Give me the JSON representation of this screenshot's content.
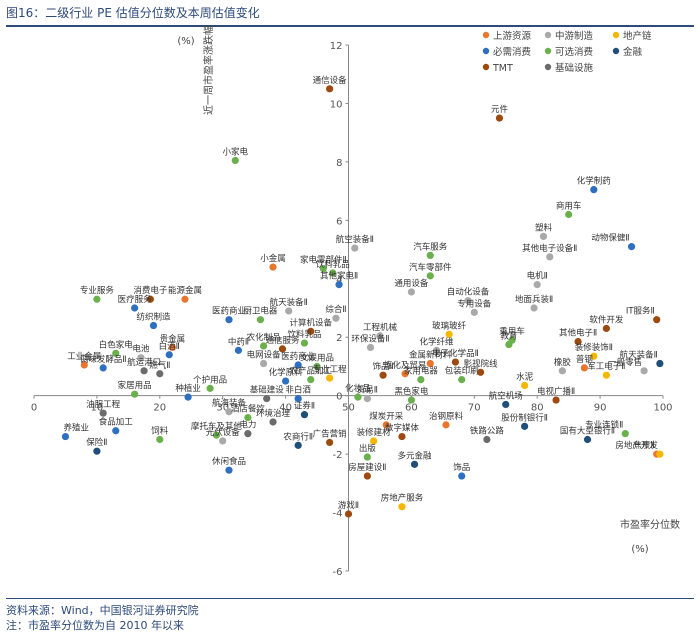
{
  "page": {
    "title": "图16：二级行业 PE 估值分位数及本周估值变化",
    "source": "资料来源：Wind，中国银河证券研究院",
    "note": "注：市盈率分位数为自 2010 年以来"
  },
  "chart_data": {
    "type": "scatter",
    "xlabel": "市盈率分位数",
    "xunit": "(%)",
    "ylabel": "近一周市盈率涨跌幅",
    "yunit": "(%)",
    "xlim": [
      0,
      100
    ],
    "ylim": [
      -6,
      12
    ],
    "xticks": [
      "0",
      "10",
      "20",
      "30",
      "40",
      "50",
      "60",
      "70",
      "80",
      "90",
      "100"
    ],
    "yticks": [
      "-6",
      "-4",
      "-2",
      "0",
      "2",
      "4",
      "6",
      "8",
      "10",
      "12"
    ],
    "legend_position": "top-right",
    "grid": false,
    "categories": [
      {
        "key": "up",
        "name": "上游资源",
        "color": "#e8762f"
      },
      {
        "key": "mid",
        "name": "中游制造",
        "color": "#a9a9a9"
      },
      {
        "key": "chain",
        "name": "地产链",
        "color": "#f5b800"
      },
      {
        "key": "need",
        "name": "必需消费",
        "color": "#2f6fc0"
      },
      {
        "key": "opt",
        "name": "可选消费",
        "color": "#6ab04c"
      },
      {
        "key": "fin",
        "name": "金融",
        "color": "#1f4e79"
      },
      {
        "key": "tmt",
        "name": "TMT",
        "color": "#9c4a0f"
      },
      {
        "key": "infra",
        "name": "基础设施",
        "color": "#6b6b6b"
      }
    ],
    "points": [
      {
        "label": "通信设备",
        "x": 47,
        "y": 10.5,
        "cat": "tmt"
      },
      {
        "label": "元件",
        "x": 74,
        "y": 9.5,
        "cat": "tmt"
      },
      {
        "label": "小家电",
        "x": 32,
        "y": 8.05,
        "cat": "opt"
      },
      {
        "label": "化学制药",
        "x": 89,
        "y": 7.05,
        "cat": "need"
      },
      {
        "label": "商用车",
        "x": 85,
        "y": 6.2,
        "cat": "opt"
      },
      {
        "label": "塑料",
        "x": 81,
        "y": 5.45,
        "cat": "mid"
      },
      {
        "label": "动物保健Ⅱ",
        "x": 95,
        "y": 5.1,
        "cat": "need"
      },
      {
        "label": "航空装备Ⅱ",
        "x": 51,
        "y": 5.05,
        "cat": "mid"
      },
      {
        "label": "其他电子设备Ⅱ",
        "x": 82,
        "y": 4.75,
        "cat": "mid"
      },
      {
        "label": "汽车服务",
        "x": 63,
        "y": 4.8,
        "cat": "opt"
      },
      {
        "label": "小金属",
        "x": 38,
        "y": 4.4,
        "cat": "up"
      },
      {
        "label": "家电零部件Ⅱ",
        "x": 46,
        "y": 4.35,
        "cat": "opt"
      },
      {
        "label": "汽车零部件",
        "x": 63,
        "y": 4.1,
        "cat": "opt"
      },
      {
        "label": "饮料乳品",
        "x": 47.5,
        "y": 4.2,
        "cat": "opt"
      },
      {
        "label": "其他家电Ⅱ",
        "x": 48.5,
        "y": 3.8,
        "cat": "need"
      },
      {
        "label": "电机Ⅱ",
        "x": 80,
        "y": 3.8,
        "cat": "mid"
      },
      {
        "label": "通用设备",
        "x": 60,
        "y": 3.55,
        "cat": "mid"
      },
      {
        "label": "自动化设备",
        "x": 69,
        "y": 3.25,
        "cat": "mid"
      },
      {
        "label": "地面兵装Ⅱ",
        "x": 79.5,
        "y": 3.0,
        "cat": "mid"
      },
      {
        "label": "专用设备",
        "x": 70,
        "y": 2.85,
        "cat": "mid"
      },
      {
        "label": "专业服务",
        "x": 10,
        "y": 3.3,
        "cat": "opt"
      },
      {
        "label": "消费电子",
        "x": 18.5,
        "y": 3.3,
        "cat": "tmt"
      },
      {
        "label": "能源金属",
        "x": 24,
        "y": 3.3,
        "cat": "up"
      },
      {
        "label": "医疗服务",
        "x": 16,
        "y": 3.0,
        "cat": "need"
      },
      {
        "label": "IT服务Ⅱ",
        "x": 99,
        "y": 2.6,
        "cat": "tmt"
      },
      {
        "label": "软件开发",
        "x": 91,
        "y": 2.3,
        "cat": "tmt"
      },
      {
        "label": "航天装备Ⅱ",
        "x": 40.5,
        "y": 2.9,
        "cat": "mid"
      },
      {
        "label": "医药商业",
        "x": 31,
        "y": 2.6,
        "cat": "need"
      },
      {
        "label": "厨卫电器",
        "x": 36,
        "y": 2.6,
        "cat": "opt"
      },
      {
        "label": "综合Ⅱ",
        "x": 48,
        "y": 2.65,
        "cat": "mid"
      },
      {
        "label": "纺织制造",
        "x": 19,
        "y": 2.4,
        "cat": "need"
      },
      {
        "label": "计算机设备",
        "x": 44,
        "y": 2.2,
        "cat": "tmt"
      },
      {
        "label": "工程机械",
        "x": 55,
        "y": 2.05,
        "cat": "mid"
      },
      {
        "label": "玻璃玻纤",
        "x": 66,
        "y": 2.1,
        "cat": "chain"
      },
      {
        "label": "乘用车",
        "x": 76,
        "y": 1.9,
        "cat": "opt"
      },
      {
        "label": "其他电子Ⅱ",
        "x": 86.5,
        "y": 1.85,
        "cat": "tmt"
      },
      {
        "label": "贵金属",
        "x": 22,
        "y": 1.65,
        "cat": "up"
      },
      {
        "label": "中药Ⅱ",
        "x": 32.5,
        "y": 1.55,
        "cat": "need"
      },
      {
        "label": "农化制品",
        "x": 36.5,
        "y": 1.7,
        "cat": "opt"
      },
      {
        "label": "通信服务",
        "x": 39.5,
        "y": 1.6,
        "cat": "tmt"
      },
      {
        "label": "饮料乳品",
        "x": 43,
        "y": 1.8,
        "cat": "opt"
      },
      {
        "label": "环保设备Ⅱ",
        "x": 53.5,
        "y": 1.65,
        "cat": "mid"
      },
      {
        "label": "化学纤维",
        "x": 64,
        "y": 1.55,
        "cat": "mid"
      },
      {
        "label": "教育",
        "x": 75.5,
        "y": 1.75,
        "cat": "opt"
      },
      {
        "label": "装修装饰Ⅱ",
        "x": 89,
        "y": 1.35,
        "cat": "chain"
      },
      {
        "label": "白色家电",
        "x": 13,
        "y": 1.45,
        "cat": "opt"
      },
      {
        "label": "电池",
        "x": 17,
        "y": 1.3,
        "cat": "mid"
      },
      {
        "label": "白酒Ⅱ",
        "x": 21.5,
        "y": 1.4,
        "cat": "need"
      },
      {
        "label": "电网设备",
        "x": 36.5,
        "y": 1.1,
        "cat": "mid"
      },
      {
        "label": "医药商业",
        "x": 42,
        "y": 1.05,
        "cat": "need"
      },
      {
        "label": "文娱用品",
        "x": 45,
        "y": 1.0,
        "cat": "opt"
      },
      {
        "label": "金属新材料",
        "x": 63,
        "y": 1.1,
        "cat": "up"
      },
      {
        "label": "电子化学品Ⅱ",
        "x": 67,
        "y": 1.15,
        "cat": "tmt"
      },
      {
        "label": "工业金属",
        "x": 8,
        "y": 1.05,
        "cat": "up"
      },
      {
        "label": "调味发酵品Ⅱ",
        "x": 11,
        "y": 0.95,
        "cat": "need"
      },
      {
        "label": "航运港口",
        "x": 17.5,
        "y": 0.85,
        "cat": "infra"
      },
      {
        "label": "燃气Ⅱ",
        "x": 20,
        "y": 0.75,
        "cat": "infra"
      },
      {
        "label": "航天装备Ⅱ",
        "x": 99.5,
        "y": 1.1,
        "cat": "fin"
      },
      {
        "label": "一般零售",
        "x": 97,
        "y": 0.85,
        "cat": "mid"
      },
      {
        "label": "普钢",
        "x": 87.5,
        "y": 0.95,
        "cat": "up"
      },
      {
        "label": "军工电子Ⅱ",
        "x": 91,
        "y": 0.7,
        "cat": "chain"
      },
      {
        "label": "橡胶",
        "x": 84,
        "y": 0.85,
        "cat": "mid"
      },
      {
        "label": "化学原料",
        "x": 40,
        "y": 0.5,
        "cat": "need"
      },
      {
        "label": "农产品加工",
        "x": 44,
        "y": 0.55,
        "cat": "opt"
      },
      {
        "label": "专业工程",
        "x": 47,
        "y": 0.6,
        "cat": "chain"
      },
      {
        "label": "炼化及贸易",
        "x": 59,
        "y": 0.75,
        "cat": "up"
      },
      {
        "label": "影视院线",
        "x": 71,
        "y": 0.8,
        "cat": "tmt"
      },
      {
        "label": "家用电器",
        "x": 61.5,
        "y": 0.55,
        "cat": "opt"
      },
      {
        "label": "包装印刷",
        "x": 68,
        "y": 0.55,
        "cat": "opt"
      },
      {
        "label": "饰品Ⅱ",
        "x": 55.5,
        "y": 0.7,
        "cat": "tmt"
      },
      {
        "label": "水泥",
        "x": 78,
        "y": 0.35,
        "cat": "chain"
      },
      {
        "label": "个护用品",
        "x": 28,
        "y": 0.25,
        "cat": "opt"
      },
      {
        "label": "家居用品",
        "x": 16,
        "y": 0.05,
        "cat": "opt"
      },
      {
        "label": "种植业",
        "x": 24.5,
        "y": -0.05,
        "cat": "need"
      },
      {
        "label": "基础建设",
        "x": 37,
        "y": -0.1,
        "cat": "infra"
      },
      {
        "label": "非白酒",
        "x": 42,
        "y": -0.1,
        "cat": "need"
      },
      {
        "label": "化妆品",
        "x": 51.5,
        "y": -0.05,
        "cat": "opt"
      },
      {
        "label": "贸易Ⅱ",
        "x": 53,
        "y": -0.1,
        "cat": "mid"
      },
      {
        "label": "黑色家电",
        "x": 60,
        "y": -0.15,
        "cat": "opt"
      },
      {
        "label": "电视广播Ⅱ",
        "x": 83,
        "y": -0.15,
        "cat": "tmt"
      },
      {
        "label": "航空机场",
        "x": 75,
        "y": -0.3,
        "cat": "fin"
      },
      {
        "label": "养殖业",
        "x": 5,
        "y": -1.4,
        "cat": "need"
      },
      {
        "label": "油服工程",
        "x": 11,
        "y": -0.6,
        "cat": "infra"
      },
      {
        "label": "食品加工",
        "x": 13,
        "y": -1.2,
        "cat": "need"
      },
      {
        "label": "保险Ⅱ",
        "x": 10,
        "y": -1.9,
        "cat": "fin"
      },
      {
        "label": "饲料",
        "x": 20,
        "y": -1.5,
        "cat": "opt"
      },
      {
        "label": "航海装备",
        "x": 31,
        "y": -0.55,
        "cat": "mid"
      },
      {
        "label": "酒店餐饮",
        "x": 34,
        "y": -0.75,
        "cat": "opt"
      },
      {
        "label": "环境治理",
        "x": 38,
        "y": -0.9,
        "cat": "infra"
      },
      {
        "label": "证券Ⅱ",
        "x": 43,
        "y": -0.65,
        "cat": "fin"
      },
      {
        "label": "电力",
        "x": 34,
        "y": -1.3,
        "cat": "infra"
      },
      {
        "label": "摩托车及其他",
        "x": 29,
        "y": -1.35,
        "cat": "opt"
      },
      {
        "label": "光伏设备",
        "x": 30,
        "y": -1.55,
        "cat": "mid"
      },
      {
        "label": "休闲食品",
        "x": 31,
        "y": -2.55,
        "cat": "need"
      },
      {
        "label": "农商行Ⅱ",
        "x": 42,
        "y": -1.7,
        "cat": "fin"
      },
      {
        "label": "广告营销",
        "x": 47,
        "y": -1.6,
        "cat": "tmt"
      },
      {
        "label": "煤炭开采",
        "x": 56,
        "y": -1.0,
        "cat": "up"
      },
      {
        "label": "数字媒体",
        "x": 58.5,
        "y": -1.4,
        "cat": "tmt"
      },
      {
        "label": "装修建材",
        "x": 54,
        "y": -1.55,
        "cat": "chain"
      },
      {
        "label": "治钢原料",
        "x": 65.5,
        "y": -1.0,
        "cat": "up"
      },
      {
        "label": "股份制银行Ⅱ",
        "x": 78,
        "y": -1.05,
        "cat": "fin"
      },
      {
        "label": "铁路公路",
        "x": 72,
        "y": -1.5,
        "cat": "infra"
      },
      {
        "label": "国有大型银行Ⅱ",
        "x": 88,
        "y": -1.5,
        "cat": "fin"
      },
      {
        "label": "专业连锁Ⅱ",
        "x": 94,
        "y": -1.3,
        "cat": "opt"
      },
      {
        "label": "焦炭Ⅱ",
        "x": 99,
        "y": -2.0,
        "cat": "up"
      },
      {
        "label": "房地产开发",
        "x": 99.5,
        "y": -2.0,
        "cat": "chain"
      },
      {
        "label": "出版",
        "x": 53,
        "y": -2.1,
        "cat": "opt"
      },
      {
        "label": "多元金融",
        "x": 60.5,
        "y": -2.35,
        "cat": "fin"
      },
      {
        "label": "饰品",
        "x": 68,
        "y": -2.75,
        "cat": "need"
      },
      {
        "label": "房屋建设Ⅱ",
        "x": 53,
        "y": -2.75,
        "cat": "tmt"
      },
      {
        "label": "房地产服务",
        "x": 58.5,
        "y": -3.8,
        "cat": "chain"
      },
      {
        "label": "游戏Ⅱ",
        "x": 50,
        "y": -4.05,
        "cat": "tmt"
      }
    ]
  }
}
